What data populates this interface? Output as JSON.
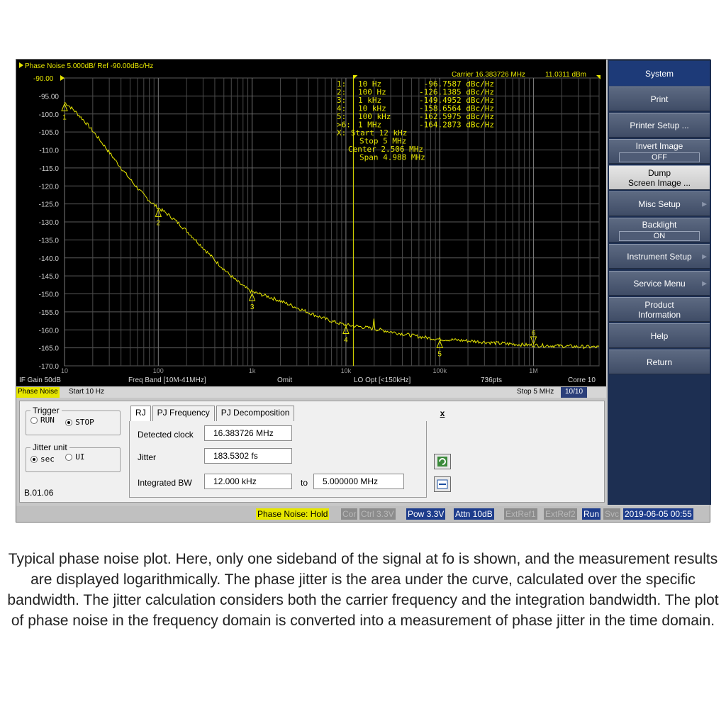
{
  "plot": {
    "header": "Phase Noise 5.000dB/ Ref -90.00dBc/Hz",
    "carrier_label": "Carrier 16.383726 MHz",
    "carrier_power": "11.0311 dBm",
    "y_ticks": [
      "-90.00",
      "-95.00",
      "-100.0",
      "-105.0",
      "-110.0",
      "-115.0",
      "-120.0",
      "-125.0",
      "-130.0",
      "-135.0",
      "-140.0",
      "-145.0",
      "-150.0",
      "-155.0",
      "-160.0",
      "-165.0",
      "-170.0"
    ],
    "x_ticks": [
      "10",
      "100",
      "1k",
      "10k",
      "100k",
      "1M"
    ],
    "marker_table": [
      {
        "id": "1:",
        "freq": "10 Hz",
        "value": "-96.7587 dBc/Hz"
      },
      {
        "id": "2:",
        "freq": "100 Hz",
        "value": "-126.1385 dBc/Hz"
      },
      {
        "id": "3:",
        "freq": "1 kHz",
        "value": "-149.4952 dBc/Hz"
      },
      {
        "id": "4:",
        "freq": "10 kHz",
        "value": "-158.6564 dBc/Hz"
      },
      {
        "id": "5:",
        "freq": "100 kHz",
        "value": "-162.5975 dBc/Hz"
      },
      {
        "id": ">6:",
        "freq": "1 MHz",
        "value": "-164.2873 dBc/Hz"
      }
    ],
    "x_info": [
      "X: Start 12 kHz",
      "Stop 5 MHz",
      "Center 2.506 MHz",
      "Span 4.988 MHz"
    ],
    "trace_color": "#e6e600",
    "markers": [
      {
        "label": "1",
        "freq_hz": 10,
        "dbc": -96.76
      },
      {
        "label": "2",
        "freq_hz": 100,
        "dbc": -126.14
      },
      {
        "label": "3",
        "freq_hz": 1000,
        "dbc": -149.5
      },
      {
        "label": "4",
        "freq_hz": 10000,
        "dbc": -158.66
      },
      {
        "label": "5",
        "freq_hz": 100000,
        "dbc": -162.6
      },
      {
        "label": "6",
        "freq_hz": 1000000,
        "dbc": -164.29
      }
    ]
  },
  "status1": {
    "if_gain": "IF Gain 50dB",
    "freq_band": "Freq Band [10M-41MHz]",
    "omit": "Omit",
    "lo_opt": "LO Opt [<150kHz]",
    "points": "736pts",
    "corre": "Corre 10"
  },
  "status2": {
    "mode": "Phase Noise",
    "start": "Start 10 Hz",
    "stop": "Stop 5 MHz",
    "count": "10/10"
  },
  "softkeys": [
    {
      "label": "System",
      "value": "",
      "style": "title"
    },
    {
      "label": "Print",
      "value": ""
    },
    {
      "label": "Printer Setup ...",
      "value": ""
    },
    {
      "label": "Invert Image",
      "value": "OFF"
    },
    {
      "label": "Dump\nScreen Image ...",
      "value": "",
      "style": "light"
    },
    {
      "label": "Misc Setup",
      "value": "",
      "arrow": "▶"
    },
    {
      "label": "Backlight",
      "value": "ON"
    },
    {
      "label": "Instrument Setup",
      "value": "",
      "arrow": "▶"
    },
    {
      "label": "Service Menu",
      "value": "",
      "arrow": "▶"
    },
    {
      "label": "Product\nInformation",
      "value": ""
    },
    {
      "label": "Help",
      "value": ""
    },
    {
      "label": "Return",
      "value": ""
    }
  ],
  "panel": {
    "trigger": {
      "legend": "Trigger",
      "run": "RUN",
      "stop": "STOP",
      "selected": "STOP"
    },
    "jitter_unit": {
      "legend": "Jitter unit",
      "sec": "sec",
      "ui": "UI",
      "selected": "sec"
    },
    "version": "B.01.06",
    "tabs": [
      "RJ",
      "PJ Frequency",
      "PJ Decomposition"
    ],
    "close": "x",
    "detected_clock_label": "Detected clock",
    "detected_clock_value": "16.383726 MHz",
    "jitter_label": "Jitter",
    "jitter_value": "183.5302 fs",
    "integrated_bw_label": "Integrated BW",
    "bw_start": "12.000 kHz",
    "to_label": "to",
    "bw_stop": "5.000000 MHz"
  },
  "bottombar": {
    "phase_noise": "Phase Noise: Hold",
    "cor": "Cor",
    "ctrl": "Ctrl  3.3V",
    "pow": "Pow  3.3V",
    "attn": "Attn 10dB",
    "extref1": "ExtRef1",
    "extref2": "ExtRef2",
    "run": "Run",
    "svc": "Svc",
    "datetime": "2019-06-05 00:55"
  },
  "caption": "Typical phase noise plot. Here, only one sideband of the signal at fo is shown, and the measurement results are displayed logarithmically. The phase jitter is the area under the curve, calculated over the specific bandwidth. The jitter calculation considers both the carrier frequency and the integration bandwidth. The plot of phase noise in the frequency domain is converted into a measurement of phase jitter in the time domain."
}
